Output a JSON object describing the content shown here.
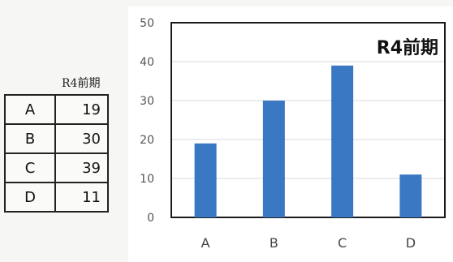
{
  "table": {
    "caption": "R4前期",
    "rows": [
      {
        "label": "A",
        "value": "19"
      },
      {
        "label": "B",
        "value": "30"
      },
      {
        "label": "C",
        "value": "39"
      },
      {
        "label": "D",
        "value": "11"
      }
    ]
  },
  "chart_data": {
    "type": "bar",
    "title": "R4前期",
    "categories": [
      "A",
      "B",
      "C",
      "D"
    ],
    "values": [
      19,
      30,
      39,
      11
    ],
    "ylim": [
      0,
      50
    ],
    "yticks": [
      0,
      10,
      20,
      30,
      40,
      50
    ],
    "grid": true,
    "bar_color": "#3b78c4",
    "xlabel": "",
    "ylabel": ""
  }
}
